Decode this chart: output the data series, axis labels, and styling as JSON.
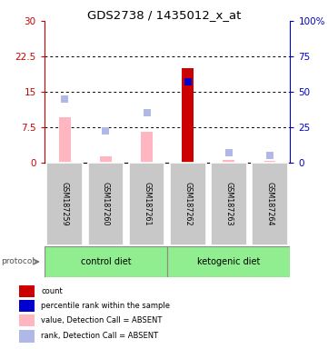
{
  "title": "GDS2738 / 1435012_x_at",
  "samples": [
    "GSM187259",
    "GSM187260",
    "GSM187261",
    "GSM187262",
    "GSM187263",
    "GSM187264"
  ],
  "bar_values": [
    9.5,
    1.2,
    6.5,
    20.0,
    0.5,
    0.3
  ],
  "bar_colors": [
    "#FFB6C1",
    "#FFB6C1",
    "#FFB6C1",
    "#CC0000",
    "#FFB6C1",
    "#FFB6C1"
  ],
  "dot_values_pct": [
    45,
    22,
    35,
    57,
    7,
    5
  ],
  "is_absent": [
    true,
    true,
    true,
    false,
    true,
    true
  ],
  "ylim_left": [
    0,
    30
  ],
  "ylim_right": [
    0,
    100
  ],
  "yticks_left": [
    0,
    7.5,
    15,
    22.5,
    30
  ],
  "ytick_labels_left": [
    "0",
    "7.5",
    "15",
    "22.5",
    "30"
  ],
  "yticks_right": [
    0,
    25,
    50,
    75,
    100
  ],
  "ytick_labels_right": [
    "0",
    "25",
    "50",
    "75",
    "100%"
  ],
  "left_axis_color": "#CC0000",
  "right_axis_color": "#0000CC",
  "dot_color_absent": "#B0B8E8",
  "dot_color_present": "#0000CC",
  "bar_color_present": "#CC0000",
  "bar_color_absent": "#FFB6C1",
  "background_color": "#FFFFFF",
  "gray_box_color": "#C8C8C8",
  "light_green": "#90EE90",
  "legend_items": [
    {
      "label": "count",
      "color": "#CC0000"
    },
    {
      "label": "percentile rank within the sample",
      "color": "#0000CC"
    },
    {
      "label": "value, Detection Call = ABSENT",
      "color": "#FFB6C1"
    },
    {
      "label": "rank, Detection Call = ABSENT",
      "color": "#B0B8E8"
    }
  ]
}
